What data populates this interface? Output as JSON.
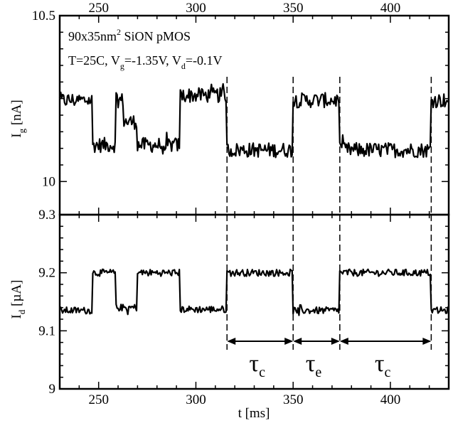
{
  "chart_data": [
    {
      "type": "line",
      "panel": "top",
      "series": [
        {
          "levels": [
            {
              "x0": 230,
              "x1": 247,
              "y": 10.245
            },
            {
              "x0": 247,
              "x1": 259,
              "y": 10.11
            },
            {
              "x0": 259,
              "x1": 263,
              "y": 10.245
            },
            {
              "x0": 263,
              "x1": 270,
              "y": 10.18
            },
            {
              "x0": 270,
              "x1": 292,
              "y": 10.11
            },
            {
              "x0": 292,
              "x1": 316,
              "y": 10.26
            },
            {
              "x0": 316,
              "x1": 350,
              "y": 10.095
            },
            {
              "x0": 350,
              "x1": 374,
              "y": 10.245
            },
            {
              "x0": 374,
              "x1": 421,
              "y": 10.095
            },
            {
              "x0": 421,
              "x1": 430,
              "y": 10.245
            }
          ]
        }
      ],
      "ylabel": {
        "base": "I",
        "sub": "g",
        "unit": " [nA]"
      },
      "yticks": [
        {
          "value": 10,
          "label": "10"
        },
        {
          "value": 10.5,
          "label": "10.5"
        }
      ],
      "ylim": [
        9.9,
        10.5
      ],
      "top_xticks": [
        {
          "value": 250,
          "label": "250"
        },
        {
          "value": 300,
          "label": "300"
        },
        {
          "value": 350,
          "label": "350"
        },
        {
          "value": 400,
          "label": "400"
        }
      ],
      "annotation": {
        "line1": {
          "a": "90x35nm",
          "sup": "2",
          "b": " SiON pMOS"
        },
        "line2": {
          "a": "T=25C, V",
          "sub1": "g",
          "b": "=-1.35V, V",
          "sub2": "d",
          "c": "=-0.1V"
        }
      }
    },
    {
      "type": "line",
      "panel": "bottom",
      "series": [
        {
          "levels": [
            {
              "x0": 230,
              "x1": 247,
              "y": 9.135
            },
            {
              "x0": 247,
              "x1": 259,
              "y": 9.2
            },
            {
              "x0": 259,
              "x1": 270,
              "y": 9.14
            },
            {
              "x0": 270,
              "x1": 292,
              "y": 9.2
            },
            {
              "x0": 292,
              "x1": 316,
              "y": 9.137
            },
            {
              "x0": 316,
              "x1": 350,
              "y": 9.2
            },
            {
              "x0": 350,
              "x1": 374,
              "y": 9.135
            },
            {
              "x0": 374,
              "x1": 421,
              "y": 9.2
            },
            {
              "x0": 421,
              "x1": 430,
              "y": 9.135
            }
          ]
        }
      ],
      "ylabel": {
        "base": "I",
        "sub": "d",
        "unit": " [µA]"
      },
      "yticks": [
        {
          "value": 9,
          "label": "9"
        },
        {
          "value": 9.1,
          "label": "9.1"
        },
        {
          "value": 9.2,
          "label": "9.2"
        },
        {
          "value": 9.3,
          "label": "9.3"
        }
      ],
      "ylim": [
        9.0,
        9.3
      ],
      "xticks": [
        {
          "value": 250,
          "label": "250"
        },
        {
          "value": 300,
          "label": "300"
        },
        {
          "value": 350,
          "label": "350"
        },
        {
          "value": 400,
          "label": "400"
        }
      ],
      "xlabel": "t [ms]",
      "xlim": [
        230,
        430
      ],
      "transition_markers": [
        316,
        350,
        374,
        421
      ],
      "intervals": [
        {
          "x0": 316,
          "x1": 350,
          "base": "τ",
          "sub": "c"
        },
        {
          "x0": 350,
          "x1": 374,
          "base": "τ",
          "sub": "e"
        },
        {
          "x0": 374,
          "x1": 421,
          "base": "τ",
          "sub": "c"
        }
      ]
    }
  ]
}
